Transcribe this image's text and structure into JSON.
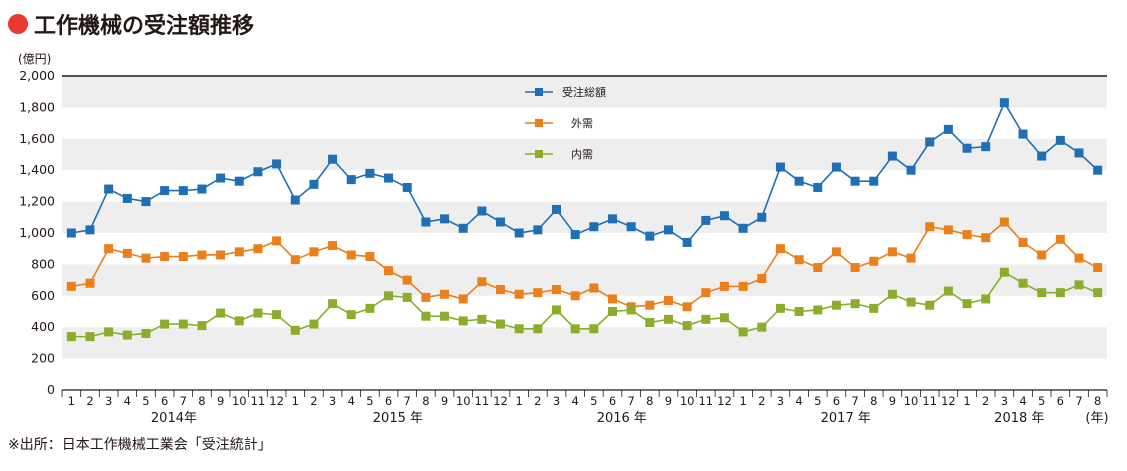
{
  "title": "工作機械の受注額推移",
  "unit_label": "(億円)",
  "x_unit_label": "(年)",
  "source": "※出所：日本工作機械工業会「受注統計」",
  "colors": {
    "title_dot": "#e8382f",
    "series_1": "#1f6fb4",
    "series_2": "#ea7f1c",
    "series_3": "#8cad2b",
    "band": "#eeeeee"
  },
  "chart_data": {
    "type": "line",
    "ylim": [
      0,
      2000
    ],
    "y_ticks": [
      "0",
      "200",
      "400",
      "600",
      "800",
      "1,000",
      "1,200",
      "1,400",
      "1,600",
      "1,800",
      "2,000"
    ],
    "years": [
      "2014年",
      "2015 年",
      "2016 年",
      "2017 年",
      "2018 年"
    ],
    "x": [
      "1",
      "2",
      "3",
      "4",
      "5",
      "6",
      "7",
      "8",
      "9",
      "10",
      "11",
      "12",
      "1",
      "2",
      "3",
      "4",
      "5",
      "6",
      "7",
      "8",
      "9",
      "10",
      "11",
      "12",
      "1",
      "2",
      "3",
      "4",
      "5",
      "6",
      "7",
      "8",
      "9",
      "10",
      "11",
      "12",
      "1",
      "2",
      "3",
      "4",
      "5",
      "6",
      "7",
      "8",
      "9",
      "10",
      "11",
      "12",
      "1",
      "2",
      "3",
      "4",
      "5",
      "6",
      "7",
      "8"
    ],
    "series": [
      {
        "name": "受注総額",
        "marker": "square",
        "values": [
          1000,
          1020,
          1280,
          1220,
          1200,
          1270,
          1270,
          1280,
          1350,
          1330,
          1390,
          1440,
          1210,
          1310,
          1470,
          1340,
          1380,
          1350,
          1290,
          1070,
          1090,
          1030,
          1140,
          1070,
          1000,
          1020,
          1150,
          990,
          1040,
          1090,
          1040,
          980,
          1020,
          940,
          1080,
          1110,
          1030,
          1100,
          1420,
          1330,
          1290,
          1420,
          1330,
          1330,
          1490,
          1400,
          1580,
          1660,
          1540,
          1550,
          1830,
          1630,
          1490,
          1590,
          1510,
          1400
        ]
      },
      {
        "name": "外需",
        "marker": "square",
        "values": [
          660,
          680,
          900,
          870,
          840,
          850,
          850,
          860,
          860,
          880,
          900,
          950,
          830,
          880,
          920,
          860,
          850,
          760,
          700,
          590,
          610,
          580,
          690,
          640,
          610,
          620,
          640,
          600,
          650,
          580,
          530,
          540,
          570,
          530,
          620,
          660,
          660,
          710,
          900,
          830,
          780,
          880,
          780,
          820,
          880,
          840,
          1040,
          1020,
          990,
          970,
          1070,
          940,
          860,
          960,
          840,
          780
        ]
      },
      {
        "name": "内需",
        "marker": "square",
        "values": [
          340,
          340,
          370,
          350,
          360,
          420,
          420,
          410,
          490,
          440,
          490,
          480,
          380,
          420,
          550,
          480,
          520,
          600,
          590,
          470,
          470,
          440,
          450,
          420,
          390,
          390,
          510,
          390,
          390,
          500,
          510,
          430,
          450,
          410,
          450,
          460,
          370,
          400,
          520,
          500,
          510,
          540,
          550,
          520,
          610,
          560,
          540,
          630,
          550,
          580,
          750,
          680,
          620,
          620,
          670,
          620
        ]
      }
    ]
  }
}
